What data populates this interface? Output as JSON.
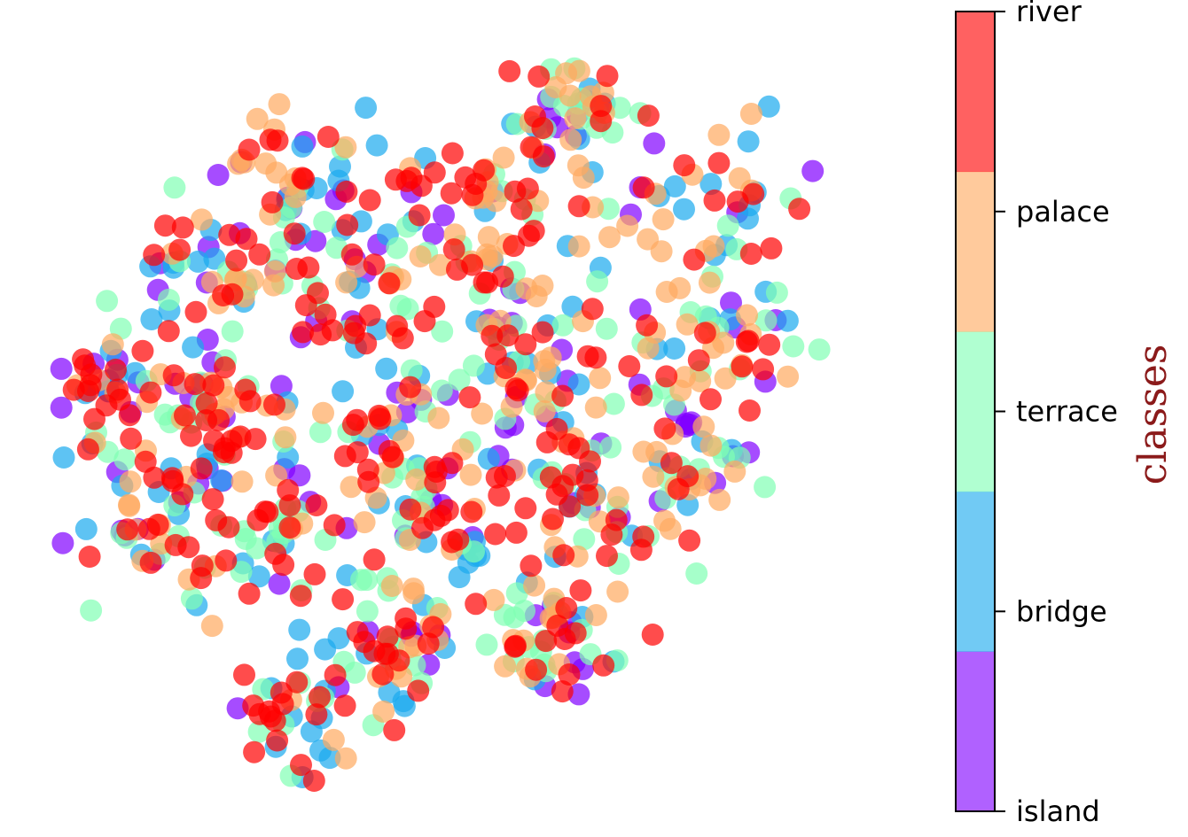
{
  "chart_data": {
    "type": "scatter",
    "title": "",
    "xlabel": "",
    "ylabel": "",
    "axes_visible": false,
    "marker": "circle",
    "alpha": 0.7,
    "colorbar": {
      "label": "classes",
      "classes": [
        "island",
        "bridge",
        "terrace",
        "palace",
        "river"
      ],
      "colors": [
        "#8000FF",
        "#1AAAEE",
        "#80FFB4",
        "#FFAA60",
        "#FF0000"
      ],
      "colormap": "rainbow"
    },
    "clusters": [
      {
        "cx": 0.63,
        "cy": 0.1,
        "r": 0.09
      },
      {
        "cx": 0.78,
        "cy": 0.22,
        "r": 0.14
      },
      {
        "cx": 0.52,
        "cy": 0.22,
        "r": 0.13
      },
      {
        "cx": 0.3,
        "cy": 0.2,
        "r": 0.12
      },
      {
        "cx": 0.2,
        "cy": 0.32,
        "r": 0.11
      },
      {
        "cx": 0.36,
        "cy": 0.34,
        "r": 0.12
      },
      {
        "cx": 0.57,
        "cy": 0.36,
        "r": 0.13
      },
      {
        "cx": 0.8,
        "cy": 0.4,
        "r": 0.12
      },
      {
        "cx": 0.08,
        "cy": 0.48,
        "r": 0.09
      },
      {
        "cx": 0.2,
        "cy": 0.5,
        "r": 0.11
      },
      {
        "cx": 0.38,
        "cy": 0.5,
        "r": 0.12
      },
      {
        "cx": 0.58,
        "cy": 0.5,
        "r": 0.12
      },
      {
        "cx": 0.78,
        "cy": 0.56,
        "r": 0.11
      },
      {
        "cx": 0.12,
        "cy": 0.64,
        "r": 0.1
      },
      {
        "cx": 0.27,
        "cy": 0.66,
        "r": 0.11
      },
      {
        "cx": 0.48,
        "cy": 0.66,
        "r": 0.12
      },
      {
        "cx": 0.66,
        "cy": 0.66,
        "r": 0.12
      },
      {
        "cx": 0.42,
        "cy": 0.8,
        "r": 0.1
      },
      {
        "cx": 0.62,
        "cy": 0.8,
        "r": 0.09
      },
      {
        "cx": 0.3,
        "cy": 0.9,
        "r": 0.1
      }
    ],
    "points_per_cluster": 48,
    "class_weights": [
      0.12,
      0.16,
      0.18,
      0.24,
      0.3
    ]
  }
}
